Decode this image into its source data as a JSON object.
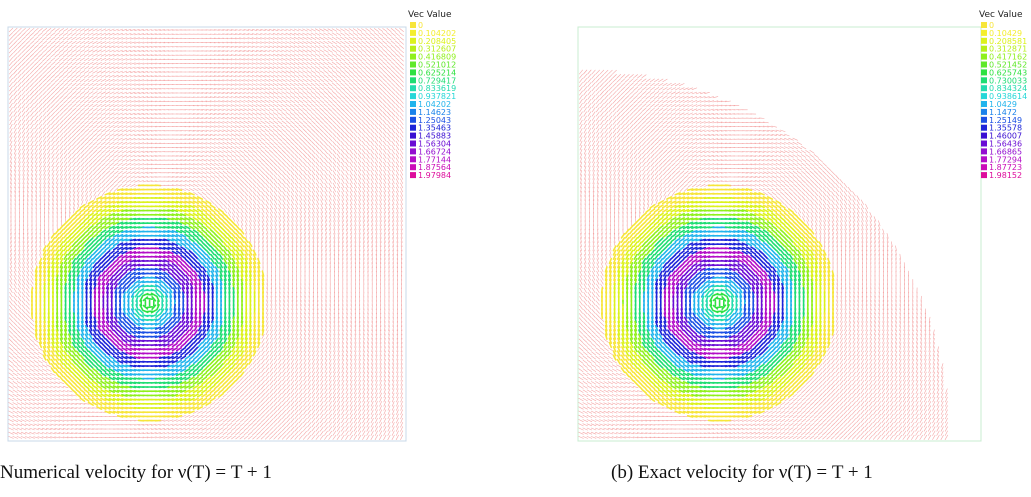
{
  "panel_a": {
    "caption": "Numerical velocity for ν(T) = T + 1",
    "legend_title": "Vec Value",
    "legend_values": [
      "0",
      "0.104202",
      "0.208405",
      "0.312607",
      "0.416809",
      "0.521012",
      "0.625214",
      "0.729417",
      "0.833619",
      "0.937821",
      "1.04202",
      "1.14623",
      "1.25043",
      "1.35463",
      "1.45883",
      "1.56304",
      "1.66724",
      "1.77144",
      "1.87564",
      "1.97984"
    ]
  },
  "panel_b": {
    "caption": "(b) Exact velocity for ν(T) = T + 1",
    "legend_title": "Vec Value",
    "legend_values": [
      "0",
      "0.10429",
      "0.208581",
      "0.312871",
      "0.417162",
      "0.521452",
      "0.625743",
      "0.730033",
      "0.834324",
      "0.938614",
      "1.0429",
      "1.1472",
      "1.25149",
      "1.35578",
      "1.46007",
      "1.56436",
      "1.66865",
      "1.77294",
      "1.87723",
      "1.98152"
    ]
  },
  "legend_colors": [
    "#f7e53a",
    "#f4ee2e",
    "#dcf21c",
    "#b7ef18",
    "#8ff01c",
    "#5fe82a",
    "#2ee142",
    "#1edd72",
    "#22dcae",
    "#25d7d8",
    "#21b4ec",
    "#1a82ea",
    "#1a50e4",
    "#1d24d8",
    "#3a0fd2",
    "#6a0cd4",
    "#930ed0",
    "#b30dc7",
    "#cb0db8",
    "#dd0c9c"
  ]
}
